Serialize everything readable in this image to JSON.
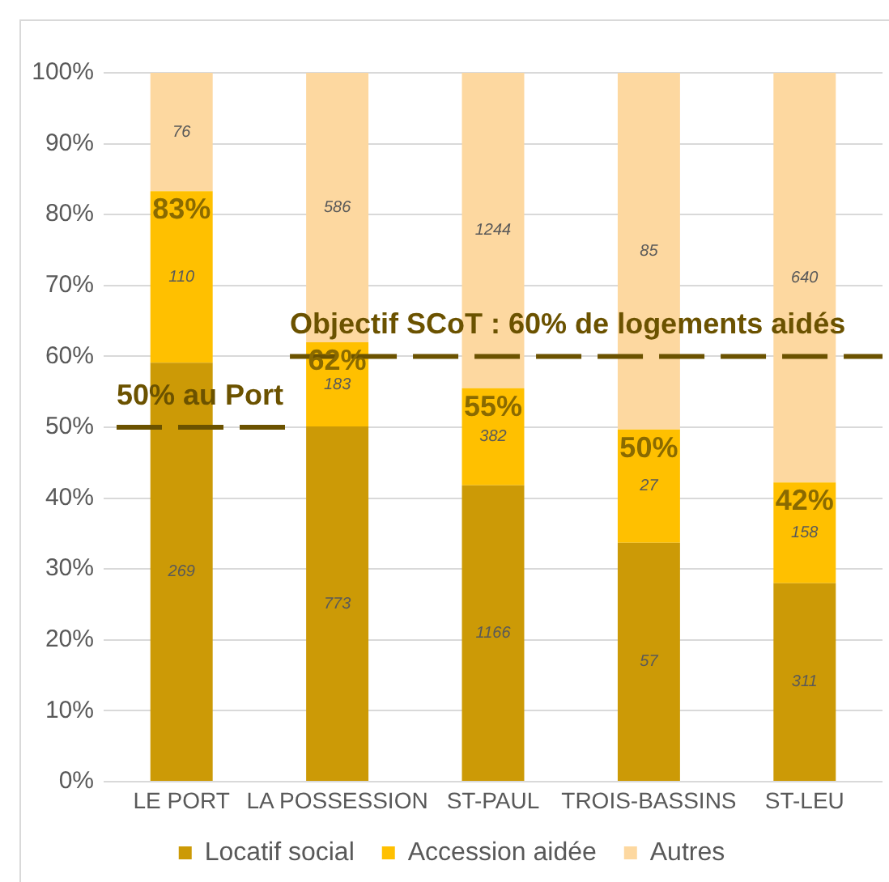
{
  "chart_data": {
    "type": "bar",
    "stacked": true,
    "categories": [
      "LE PORT",
      "LA POSSESSION",
      "ST-PAUL",
      "TROIS-BASSINS",
      "ST-LEU"
    ],
    "series": [
      {
        "name": "Locatif social",
        "color": "#cc9a06",
        "values": [
          59.1,
          50.1,
          41.8,
          33.7,
          28.0
        ]
      },
      {
        "name": "Accession aidée",
        "color": "#ffc000",
        "values": [
          24.2,
          11.9,
          13.7,
          16.0,
          14.2
        ]
      },
      {
        "name": "Autres",
        "color": "#fdd8a0",
        "values": [
          16.7,
          38.0,
          44.5,
          50.3,
          57.8
        ]
      }
    ],
    "ylim": [
      0,
      100
    ],
    "yticks": [
      {
        "value": 0,
        "label": "0%"
      },
      {
        "value": 10,
        "label": "10%"
      },
      {
        "value": 20,
        "label": "20%"
      },
      {
        "value": 30,
        "label": "30%"
      },
      {
        "value": 40,
        "label": "40%"
      },
      {
        "value": 50,
        "label": "50%"
      },
      {
        "value": 60,
        "label": "60%"
      },
      {
        "value": 70,
        "label": "70%"
      },
      {
        "value": 80,
        "label": "80%"
      },
      {
        "value": 90,
        "label": "90%"
      },
      {
        "value": 100,
        "label": "100%"
      }
    ],
    "grid": "y",
    "legend": "bottom",
    "ref_lines": [
      {
        "axis": "y",
        "value": 50,
        "label": "50% au Port",
        "color": "#6b5200",
        "line_style": "dashed"
      },
      {
        "axis": "y",
        "value": 60,
        "label": "Objectif SCoT : 60% de logements aidés",
        "color": "#6b5200",
        "line_style": "dashed"
      }
    ],
    "annotations": [
      "269",
      "773",
      "1166",
      "57",
      "311",
      "110",
      "183",
      "382",
      "27",
      "158",
      "76",
      "586",
      "1244",
      "85",
      "640",
      {
        "text": "83%",
        "x": "LE PORT",
        "y": 83.3
      },
      {
        "text": "62%",
        "x": "LA POSSESSION",
        "y": 62.0
      },
      {
        "text": "55%",
        "x": "ST-PAUL",
        "y": 55.5
      },
      {
        "text": "50%",
        "x": "TROIS-BASSINS",
        "y": 49.7
      },
      {
        "text": "42%",
        "x": "ST-LEU",
        "y": 42.2
      }
    ]
  }
}
